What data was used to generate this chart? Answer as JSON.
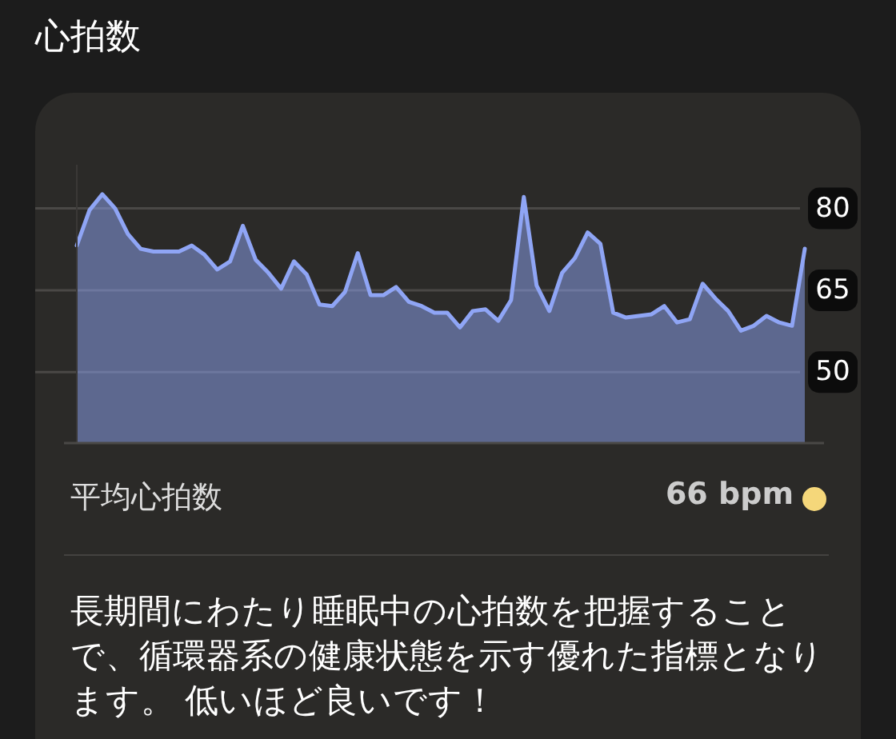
{
  "chart_data": {
    "type": "area",
    "title": "心拍数",
    "categories": [
      null,
      null,
      null,
      null,
      null,
      null,
      null,
      null,
      null,
      null,
      null,
      null,
      null,
      null,
      null,
      null,
      null,
      null,
      null,
      null,
      null,
      null,
      null,
      null,
      null,
      null,
      null,
      null,
      null,
      null,
      null,
      null,
      null,
      null,
      null,
      null,
      null,
      null,
      null,
      null,
      null,
      null,
      null,
      null,
      null,
      null,
      null,
      null,
      null,
      null,
      null,
      null,
      null,
      null,
      null,
      null,
      null,
      null
    ],
    "values": [
      73.2,
      79.7,
      82.6,
      80,
      75.3,
      72.6,
      72.1,
      72.1,
      72.1,
      73.2,
      71.5,
      68.8,
      70.3,
      76.8,
      70.6,
      68.2,
      65.3,
      70.3,
      67.9,
      62.4,
      62.1,
      64.7,
      71.8,
      64.1,
      64.1,
      65.6,
      62.9,
      62.1,
      60.9,
      60.9,
      58.2,
      61.2,
      61.5,
      59.4,
      63.2,
      82.1,
      65.9,
      61.2,
      68.2,
      70.9,
      75.6,
      73.5,
      60.9,
      60,
      60.3,
      60.6,
      62.1,
      59.1,
      59.7,
      66.2,
      63.5,
      61.2,
      57.6,
      58.5,
      60.3,
      59.1,
      58.5,
      72.6
    ],
    "color": "#8fa5f5",
    "ylim": [
      37,
      88
    ],
    "yticks": [
      50,
      65,
      80
    ],
    "grid": "y",
    "annotations": [
      "平均心拍数",
      "66 bpm",
      "長期間にわたり睡眠中の心拍数を把握することで、循環器系の健康状態を示す優れた指標となります。 低いほど良いです！"
    ]
  }
}
